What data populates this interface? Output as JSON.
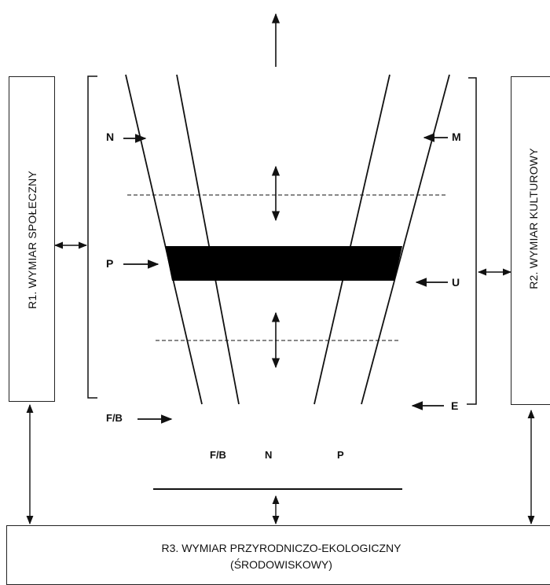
{
  "boxes": {
    "r1": "R1. WYMIAR SPOŁECZNY",
    "r2": "R2. WYMIAR KULTUROWY",
    "r3_line1": "R3. WYMIAR PRZYRODNICZO-EKOLOGICZNY",
    "r3_line2": "(ŚRODOWISKOWY)"
  },
  "labels": {
    "left_n": "N",
    "left_p": "P",
    "left_fb": "F/B",
    "right_m": "M",
    "right_u": "U",
    "right_e": "E",
    "base_fb": "F/B",
    "base_n": "N",
    "base_p": "P"
  }
}
